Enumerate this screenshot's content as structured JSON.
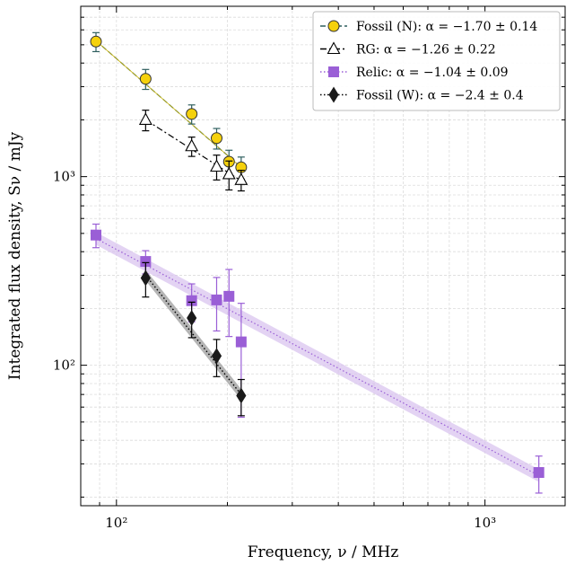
{
  "chart_data": {
    "type": "scatter",
    "xscale": "log",
    "yscale": "log",
    "xlabel": "Frequency, ν / MHz",
    "ylabel": "Integrated flux density, Sν / mJy",
    "xlim": [
      80,
      1650
    ],
    "ylim": [
      18,
      8000
    ],
    "grid": true,
    "legend_position": "top-right",
    "x_tick_labels": [
      {
        "value": 100,
        "label": "10²"
      },
      {
        "value": 1000,
        "label": "10³"
      }
    ],
    "y_tick_labels": [
      {
        "value": 100,
        "label": "10²"
      },
      {
        "value": 1000,
        "label": "10³"
      }
    ],
    "series": [
      {
        "name": "Fossil (N): α = −1.70 ± 0.14",
        "color": "#f5d10c",
        "edge_color": "#333333",
        "line_color": "#2f5f5f",
        "line_style": "dashed",
        "marker": "circle",
        "x": [
          88,
          120,
          160,
          187,
          202,
          218
        ],
        "y": [
          5200,
          3300,
          2150,
          1600,
          1200,
          1120
        ],
        "err": [
          600,
          400,
          250,
          200,
          180,
          150
        ],
        "fit": {
          "x0": 88,
          "y0": 5250,
          "x1": 218,
          "y1": 1120
        }
      },
      {
        "name": "RG: α = −1.26 ± 0.22",
        "color": "#ffffff",
        "edge_color": "#000000",
        "line_color": "#000000",
        "line_style": "dashdot",
        "marker": "triangle",
        "x": [
          120,
          160,
          187,
          202,
          218
        ],
        "y": [
          2000,
          1450,
          1130,
          1030,
          960
        ],
        "err": [
          250,
          170,
          170,
          180,
          120
        ],
        "fit": {
          "x0": 120,
          "y0": 2000,
          "x1": 218,
          "y1": 950
        }
      },
      {
        "name": "Relic: α = −1.04 ± 0.09",
        "color": "#9a5fd6",
        "edge_color": "#9a5fd6",
        "line_color": "#9a5fd6",
        "band_color": "#d7c1ee",
        "line_style": "dotted",
        "marker": "square",
        "x": [
          88,
          120,
          160,
          187,
          202,
          218,
          1400
        ],
        "y": [
          490,
          355,
          220,
          222,
          232,
          133,
          27
        ],
        "err": [
          70,
          50,
          50,
          70,
          90,
          80,
          6
        ],
        "fit": {
          "x0": 88,
          "y0": 470,
          "x1": 1400,
          "y1": 26
        }
      },
      {
        "name": "Fossil (W): α = −2.4 ± 0.4",
        "color": "#1a1a1a",
        "edge_color": "#1a1a1a",
        "line_color": "#000000",
        "band_color": "#9c9c9c",
        "line_style": "dotted",
        "marker": "diamond",
        "x": [
          120,
          160,
          187,
          218
        ],
        "y": [
          290,
          178,
          112,
          69
        ],
        "err": [
          60,
          38,
          25,
          15
        ],
        "fit": {
          "x0": 120,
          "y0": 300,
          "x1": 218,
          "y1": 70
        }
      }
    ]
  }
}
